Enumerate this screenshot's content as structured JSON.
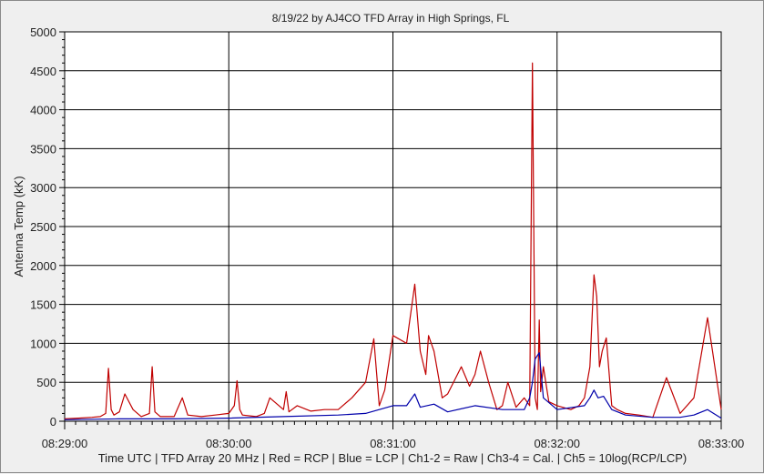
{
  "chart_data": {
    "type": "line",
    "title": "8/19/22  by  AJ4CO TFD Array  in  High Springs, FL",
    "ylabel": "Antenna Temp  (kK)",
    "footer": "Time UTC  |  TFD Array 20 MHz  |  Red = RCP  |  Blue = LCP  |  Ch1-2 = Raw  |  Ch3-4 = Cal.  |  Ch5 = 10log(RCP/LCP)",
    "xlim": [
      0,
      240
    ],
    "ylim": [
      0,
      5000
    ],
    "x_tick_labels": [
      "08:29:00",
      "08:30:00",
      "08:31:00",
      "08:32:00",
      "08:33:00"
    ],
    "y_tick_labels": [
      "0",
      "500",
      "1000",
      "1500",
      "2000",
      "2500",
      "3000",
      "3500",
      "4000",
      "4500",
      "5000"
    ],
    "grid": true,
    "colors": {
      "rcp": "#c00000",
      "lcp": "#0000aa",
      "grid": "#000000",
      "plot_bg": "#ffffff"
    },
    "series": [
      {
        "name": "Red = RCP",
        "x": [
          0,
          5,
          10,
          13,
          15,
          16,
          17,
          18,
          20,
          22,
          25,
          28,
          31,
          32,
          33,
          35,
          40,
          43,
          45,
          50,
          55,
          60,
          62,
          63,
          64,
          65,
          70,
          73,
          75,
          80,
          81,
          82,
          85,
          90,
          95,
          100,
          105,
          110,
          113,
          115,
          117,
          120,
          125,
          128,
          130,
          132,
          133,
          135,
          138,
          140,
          145,
          148,
          150,
          152,
          155,
          158,
          160,
          162,
          165,
          168,
          170,
          171,
          172,
          172.8,
          173.5,
          174,
          175,
          177,
          180,
          185,
          188,
          190,
          192,
          193.5,
          194.5,
          195.5,
          196.5,
          198,
          200,
          202,
          205,
          210,
          215,
          220,
          225,
          230,
          235,
          240
        ],
        "values": [
          30,
          40,
          50,
          60,
          100,
          680,
          150,
          80,
          120,
          350,
          150,
          60,
          100,
          700,
          120,
          60,
          60,
          300,
          80,
          60,
          80,
          100,
          200,
          520,
          150,
          80,
          60,
          100,
          300,
          150,
          380,
          120,
          200,
          130,
          150,
          150,
          300,
          500,
          1060,
          200,
          400,
          1100,
          1000,
          1760,
          900,
          600,
          1100,
          900,
          300,
          350,
          700,
          450,
          600,
          900,
          500,
          150,
          200,
          500,
          180,
          300,
          200,
          4600,
          300,
          150,
          1300,
          380,
          700,
          250,
          200,
          150,
          200,
          300,
          700,
          1880,
          1600,
          700,
          900,
          1070,
          200,
          150,
          100,
          80,
          50,
          560,
          100,
          300,
          1330,
          150
        ]
      },
      {
        "name": "Blue = LCP",
        "x": [
          0,
          20,
          40,
          60,
          80,
          100,
          110,
          115,
          120,
          125,
          128,
          130,
          135,
          140,
          150,
          160,
          168,
          170,
          171,
          172,
          173.5,
          175,
          180,
          190,
          192,
          193.5,
          195,
          197,
          200,
          205,
          215,
          225,
          230,
          235,
          240
        ],
        "values": [
          20,
          30,
          30,
          40,
          60,
          80,
          100,
          150,
          200,
          200,
          350,
          180,
          220,
          120,
          200,
          150,
          150,
          300,
          500,
          800,
          880,
          300,
          150,
          200,
          300,
          400,
          300,
          320,
          150,
          80,
          50,
          50,
          80,
          150,
          40
        ]
      }
    ]
  }
}
